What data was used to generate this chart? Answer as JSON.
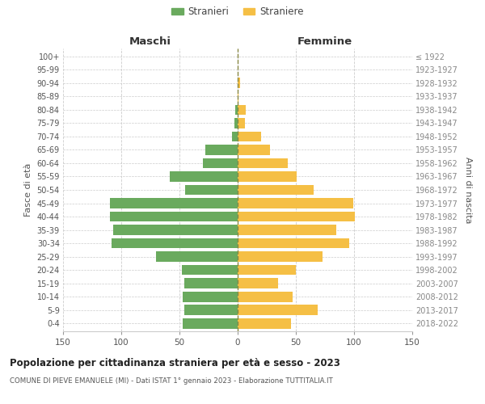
{
  "age_groups": [
    "0-4",
    "5-9",
    "10-14",
    "15-19",
    "20-24",
    "25-29",
    "30-34",
    "35-39",
    "40-44",
    "45-49",
    "50-54",
    "55-59",
    "60-64",
    "65-69",
    "70-74",
    "75-79",
    "80-84",
    "85-89",
    "90-94",
    "95-99",
    "100+"
  ],
  "birth_years": [
    "2018-2022",
    "2013-2017",
    "2008-2012",
    "2003-2007",
    "1998-2002",
    "1993-1997",
    "1988-1992",
    "1983-1987",
    "1978-1982",
    "1973-1977",
    "1968-1972",
    "1963-1967",
    "1958-1962",
    "1953-1957",
    "1948-1952",
    "1943-1947",
    "1938-1942",
    "1933-1937",
    "1928-1932",
    "1923-1927",
    "≤ 1922"
  ],
  "males": [
    47,
    46,
    47,
    46,
    48,
    70,
    108,
    107,
    110,
    110,
    45,
    58,
    30,
    28,
    5,
    3,
    2,
    0,
    0,
    0,
    0
  ],
  "females": [
    46,
    69,
    47,
    35,
    50,
    73,
    96,
    85,
    101,
    99,
    65,
    51,
    43,
    28,
    20,
    6,
    7,
    1,
    2,
    0,
    0
  ],
  "male_color": "#6aaa5e",
  "female_color": "#f5bf45",
  "male_label": "Stranieri",
  "female_label": "Straniere",
  "title": "Popolazione per cittadinanza straniera per età e sesso - 2023",
  "subtitle": "COMUNE DI PIEVE EMANUELE (MI) - Dati ISTAT 1° gennaio 2023 - Elaborazione TUTTITALIA.IT",
  "xlabel_left": "Maschi",
  "xlabel_right": "Femmine",
  "ylabel_left": "Fasce di età",
  "ylabel_right": "Anni di nascita",
  "xlim": 150,
  "bg_color": "#ffffff",
  "grid_color": "#cccccc"
}
